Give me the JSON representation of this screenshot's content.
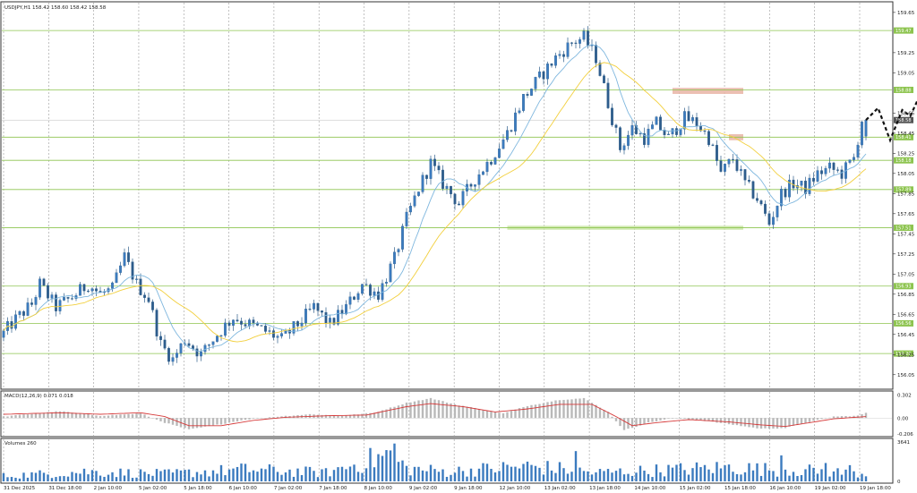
{
  "header": {
    "symbol_line": "USDJPY,H1  158.42 158.60 158.42 158.58"
  },
  "chart_data": {
    "type": "candlestick",
    "symbol": "USDJPY",
    "timeframe": "H1",
    "ohlc_display": {
      "open": 158.42,
      "high": 158.6,
      "low": 158.42,
      "close": 158.58
    },
    "last_price": 158.58,
    "ylim": [
      155.95,
      159.72
    ],
    "y_ticks": [
      "159.65",
      "159.25",
      "159.05",
      "158.65",
      "158.45",
      "158.25",
      "158.05",
      "157.85",
      "157.65",
      "157.45",
      "157.25",
      "157.05",
      "156.85",
      "156.65",
      "156.45",
      "156.25",
      "156.05"
    ],
    "x_ticks": [
      "31 Dec 2025",
      "31 Dec 18:00",
      "2 Jan 10:00",
      "5 Jan 02:00",
      "5 Jan 18:00",
      "6 Jan 10:00",
      "7 Jan 02:00",
      "7 Jan 18:00",
      "8 Jan 10:00",
      "9 Jan 02:00",
      "9 Jan 18:00",
      "12 Jan 10:00",
      "13 Jan 02:00",
      "13 Jan 18:00",
      "14 Jan 10:00",
      "15 Jan 02:00",
      "15 Jan 18:00",
      "16 Jan 10:00",
      "19 Jan 02:00",
      "19 Jan 18:00"
    ],
    "price_path": [
      [
        0,
        156.42
      ],
      [
        4,
        156.6
      ],
      [
        8,
        156.75
      ],
      [
        10,
        156.95
      ],
      [
        14,
        156.72
      ],
      [
        18,
        156.82
      ],
      [
        22,
        156.95
      ],
      [
        25,
        156.85
      ],
      [
        28,
        156.9
      ],
      [
        31,
        157.22
      ],
      [
        34,
        156.95
      ],
      [
        37,
        156.8
      ],
      [
        40,
        156.35
      ],
      [
        43,
        156.2
      ],
      [
        46,
        156.4
      ],
      [
        50,
        156.25
      ],
      [
        54,
        156.45
      ],
      [
        58,
        156.62
      ],
      [
        62,
        156.55
      ],
      [
        66,
        156.48
      ],
      [
        70,
        156.4
      ],
      [
        74,
        156.55
      ],
      [
        78,
        156.72
      ],
      [
        82,
        156.55
      ],
      [
        86,
        156.72
      ],
      [
        90,
        156.95
      ],
      [
        94,
        156.85
      ],
      [
        98,
        157.2
      ],
      [
        101,
        157.6
      ],
      [
        104,
        157.9
      ],
      [
        107,
        158.15
      ],
      [
        110,
        157.95
      ],
      [
        114,
        157.75
      ],
      [
        118,
        158.0
      ],
      [
        122,
        158.2
      ],
      [
        126,
        158.45
      ],
      [
        130,
        158.8
      ],
      [
        134,
        159.0
      ],
      [
        138,
        159.2
      ],
      [
        142,
        159.35
      ],
      [
        145,
        159.4
      ],
      [
        148,
        159.2
      ],
      [
        151,
        158.75
      ],
      [
        154,
        158.3
      ],
      [
        157,
        158.5
      ],
      [
        160,
        158.4
      ],
      [
        163,
        158.55
      ],
      [
        166,
        158.4
      ],
      [
        170,
        158.6
      ],
      [
        173,
        158.55
      ],
      [
        176,
        158.4
      ],
      [
        179,
        158.05
      ],
      [
        182,
        158.2
      ],
      [
        185,
        157.95
      ],
      [
        188,
        157.8
      ],
      [
        191,
        157.55
      ],
      [
        194,
        157.85
      ],
      [
        197,
        157.95
      ],
      [
        200,
        157.9
      ],
      [
        203,
        158.05
      ],
      [
        206,
        158.1
      ],
      [
        209,
        158.05
      ],
      [
        212,
        158.2
      ],
      [
        214,
        158.58
      ]
    ],
    "moving_averages": [
      {
        "name": "",
        "color": "#7fb7de",
        "period": 9
      },
      {
        "name": "",
        "color": "#f2cf3c",
        "period": 21
      }
    ],
    "horizontal_levels": [
      {
        "value": 159.47,
        "label": "159.47",
        "color": "#8dc44f"
      },
      {
        "value": 158.88,
        "label": "158.88",
        "color": "#8dc44f"
      },
      {
        "value": 158.41,
        "label": "158.41",
        "color": "#8dc44f"
      },
      {
        "value": 158.18,
        "label": "158.18",
        "color": "#8dc44f"
      },
      {
        "value": 157.89,
        "label": "157.89",
        "color": "#8dc44f"
      },
      {
        "value": 157.51,
        "label": "157.51",
        "color": "#8dc44f"
      },
      {
        "value": 156.93,
        "label": "156.93",
        "color": "#8dc44f"
      },
      {
        "value": 156.56,
        "label": "156.56",
        "color": "#8dc44f"
      },
      {
        "value": 156.26,
        "label": "156.26",
        "color": "#8dc44f"
      }
    ],
    "zones": [
      {
        "kind": "resistance",
        "top": 158.9,
        "bottom": 158.84,
        "start_bar": 166,
        "color": "#e8b4a4"
      },
      {
        "kind": "resistance",
        "top": 158.44,
        "bottom": 158.38,
        "start_bar": 180,
        "color": "#e8b4a4"
      },
      {
        "kind": "support",
        "top": 158.2,
        "bottom": 158.15,
        "start_bar": 200,
        "color": "#c9e6a4"
      },
      {
        "kind": "support",
        "top": 157.9,
        "bottom": 157.85,
        "start_bar": 200,
        "color": "#c9e6a4"
      },
      {
        "kind": "support",
        "top": 157.53,
        "bottom": 157.49,
        "start_bar": 125,
        "color": "#c9e6a4"
      }
    ],
    "projection": [
      [
        214,
        158.58
      ],
      [
        217,
        158.7
      ],
      [
        220,
        158.38
      ],
      [
        223,
        158.68
      ],
      [
        225,
        158.62
      ],
      [
        228,
        158.88
      ]
    ],
    "macd": {
      "label": "MACD(12,26,9) 0.071 0.018",
      "value": 0.071,
      "signal": 0.018,
      "ylim": [
        -0.22,
        0.32
      ],
      "y_ticks": [
        "0.302",
        "0.00",
        "-0.206"
      ],
      "hist_path": [
        [
          0,
          0.02
        ],
        [
          14,
          0.09
        ],
        [
          24,
          0.03
        ],
        [
          34,
          0.06
        ],
        [
          40,
          -0.06
        ],
        [
          46,
          -0.15
        ],
        [
          54,
          -0.08
        ],
        [
          60,
          -0.02
        ],
        [
          68,
          0.02
        ],
        [
          76,
          0.05
        ],
        [
          84,
          0.03
        ],
        [
          92,
          0.07
        ],
        [
          100,
          0.2
        ],
        [
          106,
          0.26
        ],
        [
          112,
          0.18
        ],
        [
          118,
          0.12
        ],
        [
          124,
          0.06
        ],
        [
          130,
          0.16
        ],
        [
          138,
          0.24
        ],
        [
          144,
          0.26
        ],
        [
          150,
          0.08
        ],
        [
          154,
          -0.16
        ],
        [
          160,
          -0.06
        ],
        [
          166,
          0.0
        ],
        [
          172,
          -0.02
        ],
        [
          180,
          -0.08
        ],
        [
          188,
          -0.14
        ],
        [
          194,
          -0.13
        ],
        [
          200,
          -0.05
        ],
        [
          206,
          0.02
        ],
        [
          212,
          0.03
        ],
        [
          214,
          0.07
        ]
      ],
      "signal_path": [
        [
          0,
          0.05
        ],
        [
          14,
          0.07
        ],
        [
          24,
          0.05
        ],
        [
          34,
          0.07
        ],
        [
          40,
          0.02
        ],
        [
          46,
          -0.1
        ],
        [
          54,
          -0.1
        ],
        [
          62,
          -0.03
        ],
        [
          70,
          0.01
        ],
        [
          80,
          0.03
        ],
        [
          90,
          0.04
        ],
        [
          100,
          0.15
        ],
        [
          106,
          0.19
        ],
        [
          114,
          0.15
        ],
        [
          122,
          0.08
        ],
        [
          130,
          0.12
        ],
        [
          138,
          0.18
        ],
        [
          146,
          0.18
        ],
        [
          152,
          0.02
        ],
        [
          156,
          -0.1
        ],
        [
          162,
          -0.06
        ],
        [
          170,
          -0.02
        ],
        [
          180,
          -0.05
        ],
        [
          188,
          -0.09
        ],
        [
          194,
          -0.11
        ],
        [
          200,
          -0.06
        ],
        [
          206,
          -0.01
        ],
        [
          214,
          0.02
        ]
      ]
    },
    "volumes": {
      "label": "Volumes 260",
      "value": 260,
      "ylim": [
        0,
        3641
      ],
      "y_ticks": [
        "3641",
        "0"
      ],
      "vol_path": [
        [
          0,
          500
        ],
        [
          20,
          900
        ],
        [
          40,
          700
        ],
        [
          60,
          1100
        ],
        [
          80,
          800
        ],
        [
          96,
          2500
        ],
        [
          100,
          1200
        ],
        [
          110,
          900
        ],
        [
          130,
          1400
        ],
        [
          140,
          1100
        ],
        [
          146,
          800
        ],
        [
          160,
          1000
        ],
        [
          180,
          1300
        ],
        [
          190,
          1100
        ],
        [
          200,
          1000
        ],
        [
          214,
          700
        ]
      ],
      "spikes": [
        [
          97,
          3500
        ],
        [
          142,
          2800
        ],
        [
          193,
          2400
        ],
        [
          204,
          1700
        ],
        [
          210,
          1500
        ]
      ]
    }
  }
}
